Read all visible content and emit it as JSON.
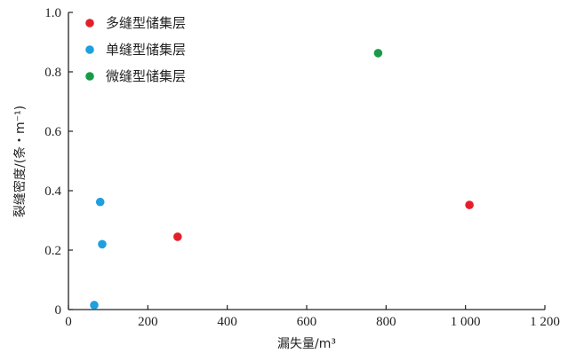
{
  "chart_data": {
    "type": "scatter",
    "xlabel": "漏失量/m³",
    "ylabel": "裂缝密度/(条・m⁻¹)",
    "xlim": [
      0,
      1200
    ],
    "ylim": [
      0,
      1.0
    ],
    "x_ticks": [
      0,
      200,
      400,
      600,
      800,
      1000,
      1200
    ],
    "x_tick_labels": [
      "0",
      "200",
      "400",
      "600",
      "800",
      "1 000",
      "1 200"
    ],
    "y_ticks": [
      0,
      0.2,
      0.4,
      0.6,
      0.8,
      1.0
    ],
    "y_tick_labels": [
      "0",
      "0.2",
      "0.4",
      "0.6",
      "0.8",
      "1.0"
    ],
    "grid": false,
    "legend_position": "top-left",
    "series": [
      {
        "name": "多缝型储集层",
        "color": "#e3202a",
        "points": [
          {
            "x": 275,
            "y": 0.245
          },
          {
            "x": 1010,
            "y": 0.352
          }
        ]
      },
      {
        "name": "单缝型储集层",
        "color": "#1e9fe0",
        "points": [
          {
            "x": 80,
            "y": 0.362
          },
          {
            "x": 85,
            "y": 0.22
          },
          {
            "x": 65,
            "y": 0.015
          }
        ]
      },
      {
        "name": "微缝型储集层",
        "color": "#1a9a48",
        "points": [
          {
            "x": 780,
            "y": 0.863
          }
        ]
      }
    ]
  }
}
